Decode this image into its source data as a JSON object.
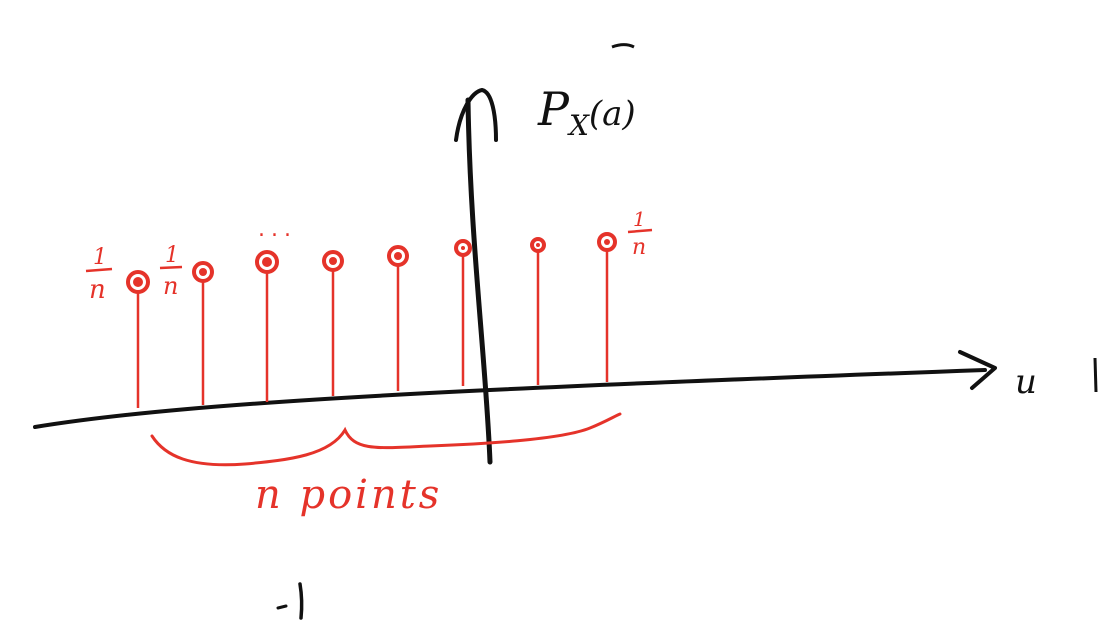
{
  "diagram": {
    "y_axis_label": "P",
    "y_axis_subscript": "X",
    "y_axis_argument": "(a)",
    "x_axis_label": "u",
    "points_label": "n points",
    "ellipsis": "...",
    "value_numerator": "1",
    "value_denominator": "n",
    "point_count": 8,
    "colors": {
      "ink": "#111111",
      "red": "#e5332a"
    }
  }
}
